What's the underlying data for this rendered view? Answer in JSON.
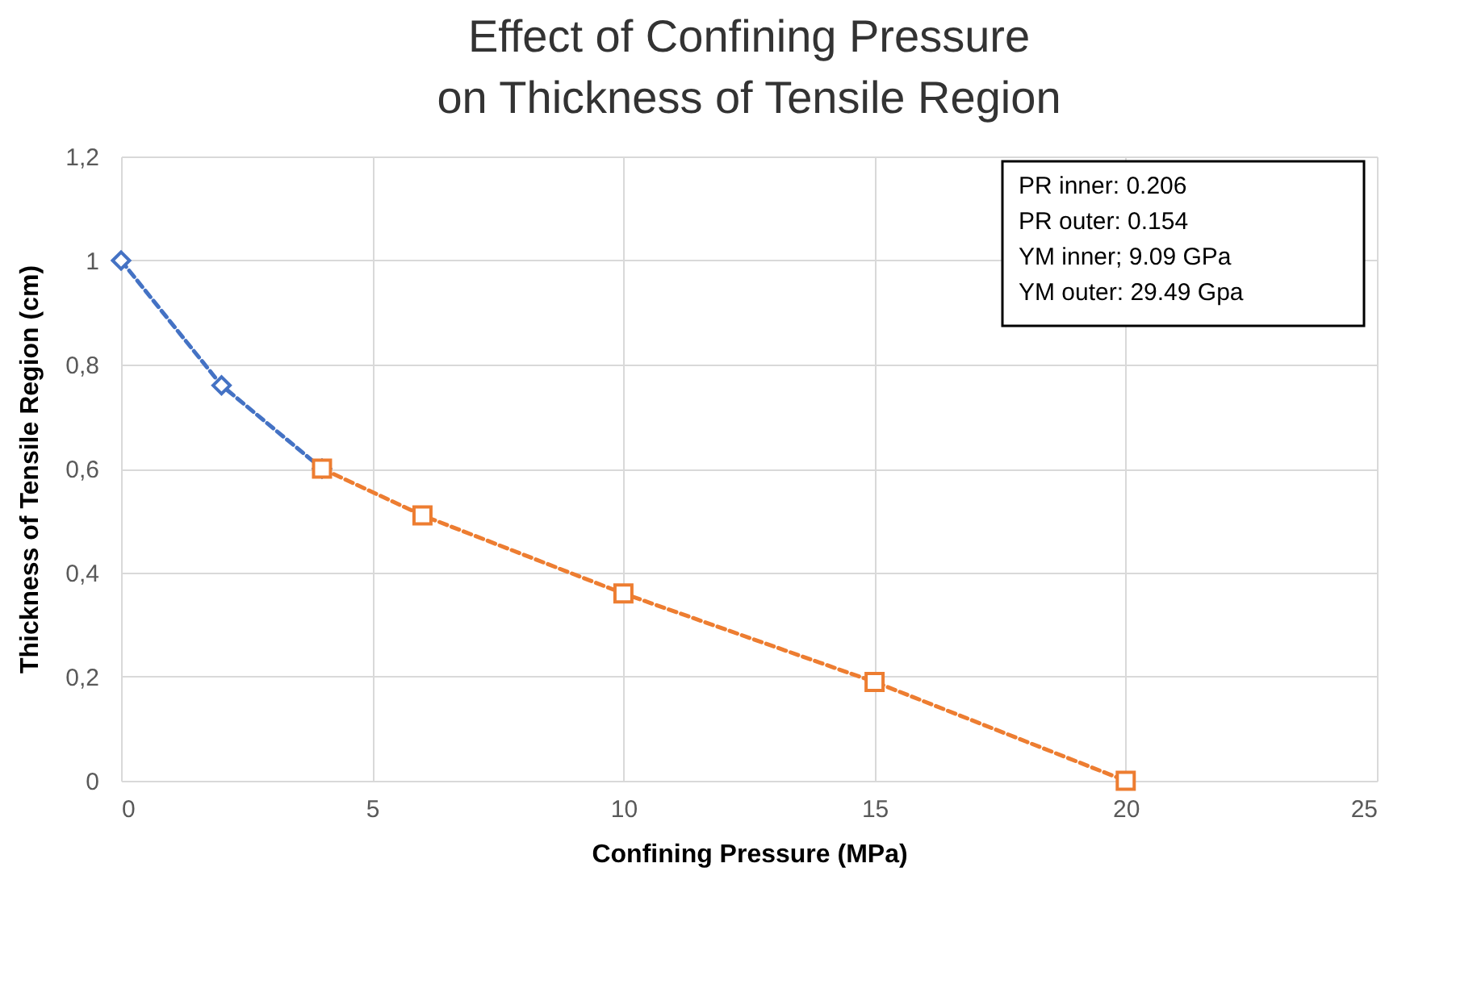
{
  "chart_data": {
    "type": "line",
    "title": "Effect of Confining Pressure\non Thickness of Tensile Region",
    "xlabel": "Confining Pressure (MPa)",
    "ylabel": "Thickness of Tensile Region (cm)",
    "series": [
      {
        "color": "#4472c4",
        "marker": "diamond",
        "x": [
          0,
          2,
          4
        ],
        "values": [
          1,
          0.76,
          0.6
        ]
      },
      {
        "color": "#ed7d31",
        "marker": "square",
        "x": [
          4,
          6,
          10,
          15,
          20
        ],
        "values": [
          0.6,
          0.51,
          0.36,
          0.19,
          0
        ]
      }
    ],
    "xlim": [
      0,
      25
    ],
    "xticks": [
      0,
      5,
      10,
      15,
      20,
      25
    ],
    "ylim": [
      0,
      1.2
    ],
    "yticks": [
      0,
      {
        "value": 0.2,
        "label": "0,2"
      },
      {
        "value": 0.4,
        "label": "0,4"
      },
      {
        "value": 0.6,
        "label": "0,6"
      },
      {
        "value": 0.8,
        "label": "0,8"
      },
      1,
      {
        "value": 1.2,
        "label": "1,2"
      }
    ],
    "grid": true,
    "line_style": "dashed",
    "legend": false,
    "annotations": [
      "PR inner: 0.206",
      "PR outer: 0.154",
      "YM inner; 9.09 GPa",
      "YM outer: 29.49 Gpa"
    ]
  }
}
